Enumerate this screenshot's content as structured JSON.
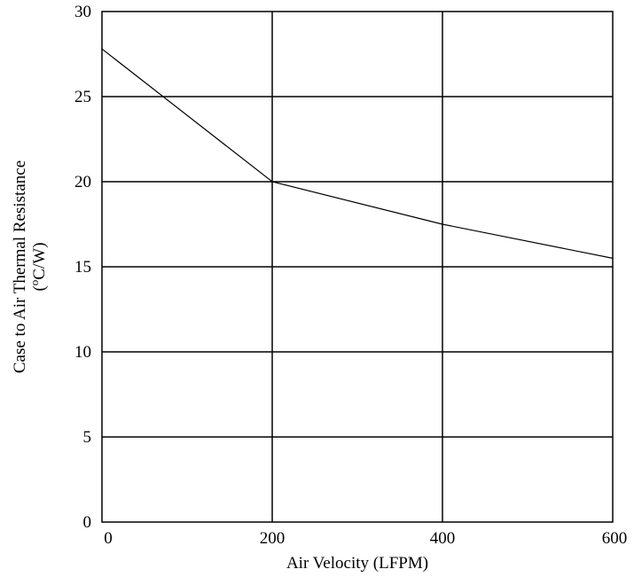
{
  "chart_data": {
    "type": "line",
    "title": "",
    "xlabel": "Air Velocity (LFPM)",
    "ylabel_line1": "Case to Air Thermal Resistance",
    "ylabel_line2_prefix": "(",
    "ylabel_line2_sup": "o",
    "ylabel_line2_suffix": "C/W)",
    "xlim": [
      0,
      600
    ],
    "ylim": [
      0,
      30
    ],
    "xticks": [
      0,
      200,
      400,
      600
    ],
    "yticks": [
      0,
      5,
      10,
      15,
      20,
      25,
      30
    ],
    "grid": true,
    "series": [
      {
        "x": [
          0,
          200,
          400,
          600
        ],
        "y": [
          27.8,
          20.0,
          17.5,
          15.5
        ],
        "color": "#000000"
      }
    ]
  }
}
